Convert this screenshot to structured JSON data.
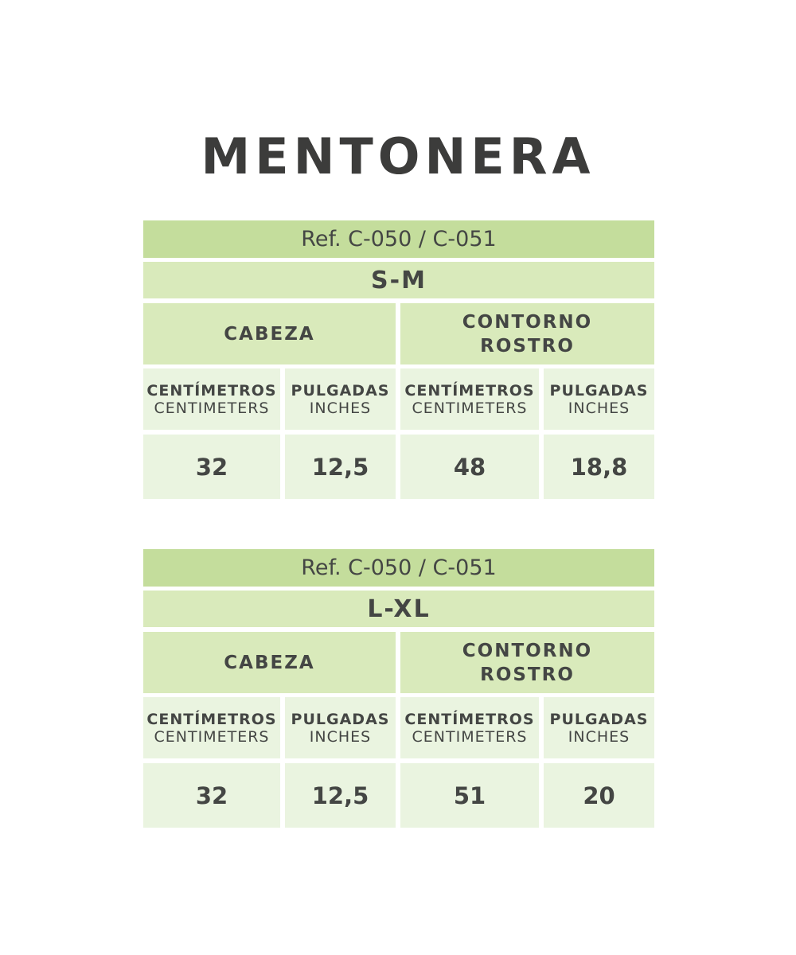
{
  "title": "MENTONERA",
  "tables": [
    {
      "ref": "Ref. C-050 / C-051",
      "size": "S-M",
      "groups": [
        "CABEZA",
        "CONTORNO ROSTRO"
      ],
      "units": [
        {
          "es": "CENTÍMETROS",
          "en": "CENTIMETERS"
        },
        {
          "es": "PULGADAS",
          "en": "INCHES"
        },
        {
          "es": "CENTÍMETROS",
          "en": "CENTIMETERS"
        },
        {
          "es": "PULGADAS",
          "en": "INCHES"
        }
      ],
      "values": [
        "32",
        "12,5",
        "48",
        "18,8"
      ]
    },
    {
      "ref": "Ref. C-050 / C-051",
      "size": "L-XL",
      "groups": [
        "CABEZA",
        "CONTORNO ROSTRO"
      ],
      "units": [
        {
          "es": "CENTÍMETROS",
          "en": "CENTIMETERS"
        },
        {
          "es": "PULGADAS",
          "en": "INCHES"
        },
        {
          "es": "CENTÍMETROS",
          "en": "CENTIMETERS"
        },
        {
          "es": "PULGADAS",
          "en": "INCHES"
        }
      ],
      "values": [
        "32",
        "12,5",
        "51",
        "20"
      ]
    }
  ],
  "colors": {
    "ref_bg": "#c4dd9c",
    "header_bg": "#d9eabb",
    "cell_bg": "#eaf4e0",
    "text": "#444644"
  }
}
